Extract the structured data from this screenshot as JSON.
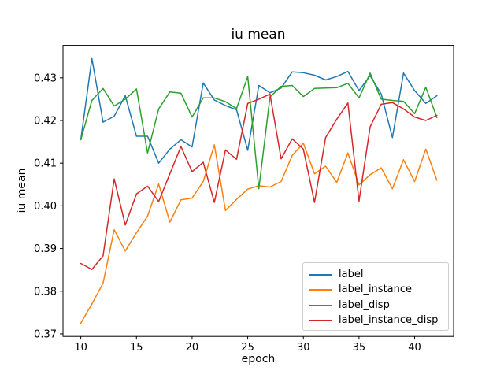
{
  "title": "iu mean",
  "chart_data": {
    "type": "line",
    "title": "iu mean",
    "xlabel": "epoch",
    "ylabel": "iu mean",
    "x": [
      10,
      11,
      12,
      13,
      14,
      15,
      16,
      17,
      18,
      19,
      20,
      21,
      22,
      23,
      24,
      25,
      26,
      27,
      28,
      29,
      30,
      31,
      32,
      33,
      34,
      35,
      36,
      37,
      38,
      39,
      40,
      41,
      42
    ],
    "xticks": [
      10,
      15,
      20,
      25,
      30,
      35,
      40
    ],
    "yticks": [
      0.37,
      0.38,
      0.39,
      0.4,
      0.41,
      0.42,
      0.43
    ],
    "xlim": [
      8.4,
      43.5
    ],
    "ylim": [
      0.3694,
      0.4376
    ],
    "grid": false,
    "legend_position": "lower right",
    "axis_color": "#000000",
    "series": [
      {
        "name": "label",
        "color": "#1f77b4",
        "values": [
          0.4155,
          0.4345,
          0.4196,
          0.421,
          0.4258,
          0.4163,
          0.4163,
          0.41,
          0.4133,
          0.4155,
          0.4138,
          0.4288,
          0.4248,
          0.4235,
          0.4225,
          0.413,
          0.4282,
          0.4265,
          0.4276,
          0.4314,
          0.4312,
          0.4306,
          0.4295,
          0.4303,
          0.4315,
          0.427,
          0.4305,
          0.4262,
          0.416,
          0.4311,
          0.427,
          0.424,
          0.4258
        ]
      },
      {
        "name": "label_instance",
        "color": "#ff7f0e",
        "values": [
          0.3725,
          0.377,
          0.3819,
          0.3944,
          0.3894,
          0.3937,
          0.3976,
          0.4051,
          0.3962,
          0.4014,
          0.4018,
          0.4057,
          0.4143,
          0.3989,
          0.4015,
          0.4039,
          0.4047,
          0.4044,
          0.4057,
          0.4118,
          0.4147,
          0.4075,
          0.4093,
          0.4055,
          0.4124,
          0.4049,
          0.4073,
          0.4089,
          0.404,
          0.4108,
          0.4057,
          0.4133,
          0.406
        ]
      },
      {
        "name": "label_disp",
        "color": "#2ca02c",
        "values": [
          0.4155,
          0.4247,
          0.4275,
          0.4234,
          0.425,
          0.4274,
          0.4124,
          0.4227,
          0.4267,
          0.4264,
          0.4208,
          0.4253,
          0.4253,
          0.4244,
          0.4228,
          0.4303,
          0.404,
          0.4255,
          0.428,
          0.4282,
          0.4256,
          0.4275,
          0.4276,
          0.4277,
          0.4287,
          0.4253,
          0.4311,
          0.425,
          0.4247,
          0.4245,
          0.4216,
          0.4278,
          0.4207
        ]
      },
      {
        "name": "label_instance_disp",
        "color": "#d62728",
        "values": [
          0.3865,
          0.3851,
          0.3883,
          0.4063,
          0.3955,
          0.4028,
          0.4046,
          0.401,
          0.4075,
          0.4139,
          0.408,
          0.4102,
          0.4008,
          0.4131,
          0.4109,
          0.424,
          0.425,
          0.4262,
          0.411,
          0.4157,
          0.4133,
          0.4008,
          0.416,
          0.4203,
          0.4241,
          0.4011,
          0.4185,
          0.4238,
          0.4242,
          0.4227,
          0.4208,
          0.42,
          0.4212
        ]
      }
    ]
  }
}
